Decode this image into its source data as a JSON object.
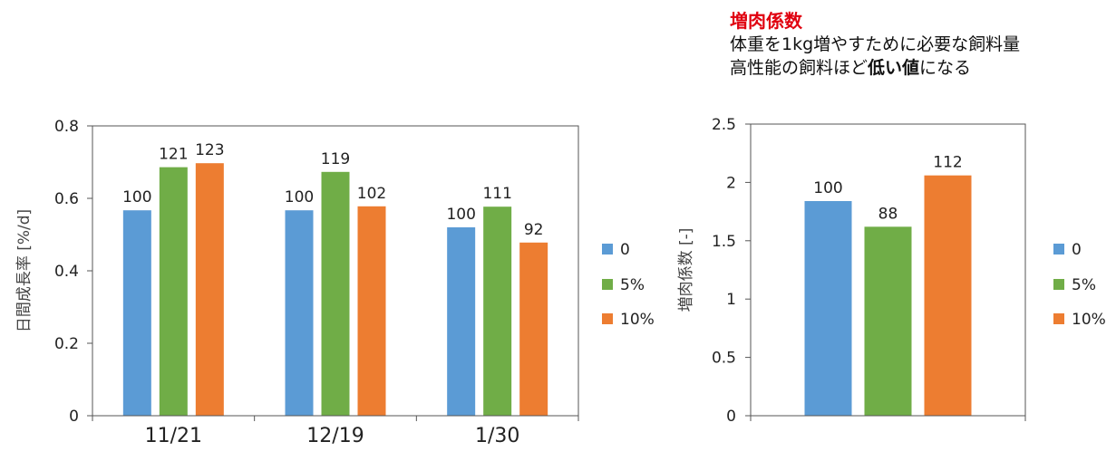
{
  "note": {
    "title": "増肉係数",
    "line1": "体重を1kg増やすために必要な飼料量",
    "line2_prefix": "高性能の飼料ほど",
    "line2_bold": "低い値",
    "line2_suffix": "になる"
  },
  "colors": {
    "0": "#5b9bd5",
    "5%": "#70ad47",
    "10%": "#ed7d31"
  },
  "chart_data": [
    {
      "type": "bar",
      "ylabel": "日間成長率 [%/d]",
      "xlabel": "",
      "ylim": [
        0,
        0.8
      ],
      "yticks": [
        "0",
        "0.2",
        "0.4",
        "0.6",
        "0.8"
      ],
      "categories": [
        "11/21",
        "12/19",
        "1/30"
      ],
      "series": [
        {
          "name": "0",
          "values": [
            0.567,
            0.567,
            0.52
          ],
          "labels": [
            "100",
            "100",
            "100"
          ]
        },
        {
          "name": "5%",
          "values": [
            0.686,
            0.673,
            0.577
          ],
          "labels": [
            "121",
            "119",
            "111"
          ]
        },
        {
          "name": "10%",
          "values": [
            0.697,
            0.578,
            0.478
          ],
          "labels": [
            "123",
            "102",
            "92"
          ]
        }
      ],
      "legend": [
        "0",
        "5%",
        "10%"
      ],
      "legend_position": "right"
    },
    {
      "type": "bar",
      "ylabel": "増肉係数 [-]",
      "xlabel": "",
      "ylim": [
        0,
        2.5
      ],
      "yticks": [
        "0",
        "0.5",
        "1",
        "1.5",
        "2",
        "2.5"
      ],
      "categories": [
        ""
      ],
      "series": [
        {
          "name": "0",
          "values": [
            1.84
          ],
          "labels": [
            "100"
          ]
        },
        {
          "name": "5%",
          "values": [
            1.62
          ],
          "labels": [
            "88"
          ]
        },
        {
          "name": "10%",
          "values": [
            2.06
          ],
          "labels": [
            "112"
          ]
        }
      ],
      "legend": [
        "0",
        "5%",
        "10%"
      ],
      "legend_position": "right"
    }
  ]
}
